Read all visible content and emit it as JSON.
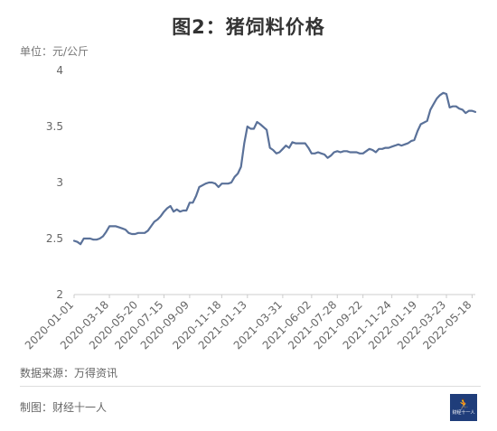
{
  "header": {
    "title": "图2：猪饲料价格",
    "unit": "单位：元/公斤"
  },
  "footer": {
    "source": "数据来源：万得资讯",
    "credit": "制图：财经十一人",
    "logo_text": "财经十一人",
    "logo_icon": "runner-icon"
  },
  "colors": {
    "line": "#5a7199",
    "axis": "#cccccc",
    "logo_bg": "#1f3d7a"
  },
  "chart_data": {
    "type": "line",
    "title": "",
    "xlabel": "",
    "ylabel": "",
    "ylim": [
      2,
      4
    ],
    "yticks": [
      "2",
      "2.5",
      "3",
      "3.5",
      "4"
    ],
    "xticks": [
      "2020-01-01",
      "2020-03-18",
      "2020-05-20",
      "2020-07-15",
      "2020-09-09",
      "2020-11-18",
      "2021-01-13",
      "2021-03-31",
      "2021-06-02",
      "2021-07-28",
      "2021-09-22",
      "2021-11-24",
      "2022-01-19",
      "2022-03-23",
      "2022-05-18"
    ],
    "grid": false,
    "legend": "none",
    "series": [
      {
        "x": [
          "2020-01-01",
          "2020-01-08",
          "2020-01-15",
          "2020-01-22",
          "2020-02-05",
          "2020-02-12",
          "2020-02-19",
          "2020-02-26",
          "2020-03-04",
          "2020-03-11",
          "2020-03-18",
          "2020-03-25",
          "2020-04-01",
          "2020-04-08",
          "2020-04-15",
          "2020-04-22",
          "2020-04-29",
          "2020-05-06",
          "2020-05-13",
          "2020-05-20",
          "2020-05-27",
          "2020-06-03",
          "2020-06-10",
          "2020-06-17",
          "2020-06-24",
          "2020-07-01",
          "2020-07-08",
          "2020-07-15",
          "2020-07-22",
          "2020-07-29",
          "2020-08-05",
          "2020-08-12",
          "2020-08-19",
          "2020-08-26",
          "2020-09-02",
          "2020-09-09",
          "2020-09-16",
          "2020-09-23",
          "2020-09-30",
          "2020-10-14",
          "2020-10-21",
          "2020-10-28",
          "2020-11-04",
          "2020-11-11",
          "2020-11-18",
          "2020-11-25",
          "2020-12-02",
          "2020-12-09",
          "2020-12-16",
          "2020-12-23",
          "2020-12-30",
          "2021-01-06",
          "2021-01-13",
          "2021-01-20",
          "2021-01-27",
          "2021-02-03",
          "2021-02-10",
          "2021-02-24",
          "2021-03-03",
          "2021-03-10",
          "2021-03-17",
          "2021-03-24",
          "2021-03-31",
          "2021-04-07",
          "2021-04-14",
          "2021-04-21",
          "2021-04-28",
          "2021-05-05",
          "2021-05-12",
          "2021-05-19",
          "2021-05-26",
          "2021-06-02",
          "2021-06-09",
          "2021-06-16",
          "2021-06-23",
          "2021-06-30",
          "2021-07-07",
          "2021-07-14",
          "2021-07-21",
          "2021-07-28",
          "2021-08-04",
          "2021-08-11",
          "2021-08-18",
          "2021-08-25",
          "2021-09-01",
          "2021-09-08",
          "2021-09-15",
          "2021-09-22",
          "2021-09-29",
          "2021-10-06",
          "2021-10-13",
          "2021-10-20",
          "2021-10-27",
          "2021-11-03",
          "2021-11-10",
          "2021-11-17",
          "2021-11-24",
          "2021-12-01",
          "2021-12-08",
          "2021-12-15",
          "2021-12-22",
          "2021-12-29",
          "2022-01-05",
          "2022-01-12",
          "2022-01-19",
          "2022-01-26",
          "2022-02-09",
          "2022-02-16",
          "2022-02-23",
          "2022-03-02",
          "2022-03-09",
          "2022-03-16",
          "2022-03-23",
          "2022-03-30",
          "2022-04-06",
          "2022-04-13",
          "2022-04-20",
          "2022-04-27",
          "2022-05-04",
          "2022-05-11",
          "2022-05-18",
          "2022-05-25"
        ],
        "values": [
          2.48,
          2.47,
          2.45,
          2.5,
          2.5,
          2.49,
          2.49,
          2.5,
          2.52,
          2.56,
          2.61,
          2.61,
          2.61,
          2.6,
          2.59,
          2.58,
          2.55,
          2.54,
          2.54,
          2.55,
          2.55,
          2.55,
          2.57,
          2.61,
          2.65,
          2.67,
          2.7,
          2.74,
          2.77,
          2.79,
          2.74,
          2.76,
          2.74,
          2.75,
          2.75,
          2.82,
          2.82,
          2.88,
          2.96,
          2.99,
          3.0,
          3.0,
          2.99,
          2.96,
          2.99,
          2.99,
          2.99,
          3.0,
          3.05,
          3.08,
          3.14,
          3.35,
          3.5,
          3.48,
          3.48,
          3.54,
          3.52,
          3.47,
          3.31,
          3.29,
          3.26,
          3.27,
          3.3,
          3.33,
          3.31,
          3.36,
          3.35,
          3.35,
          3.35,
          3.35,
          3.31,
          3.26,
          3.26,
          3.27,
          3.26,
          3.25,
          3.22,
          3.24,
          3.27,
          3.28,
          3.27,
          3.28,
          3.28,
          3.27,
          3.27,
          3.27,
          3.26,
          3.26,
          3.28,
          3.3,
          3.29,
          3.27,
          3.3,
          3.3,
          3.31,
          3.31,
          3.32,
          3.33,
          3.34,
          3.33,
          3.34,
          3.35,
          3.37,
          3.38,
          3.46,
          3.52,
          3.55,
          3.65,
          3.7,
          3.75,
          3.78,
          3.8,
          3.79,
          3.67,
          3.68,
          3.68,
          3.66,
          3.65,
          3.62,
          3.64,
          3.64,
          3.63
        ]
      }
    ]
  }
}
